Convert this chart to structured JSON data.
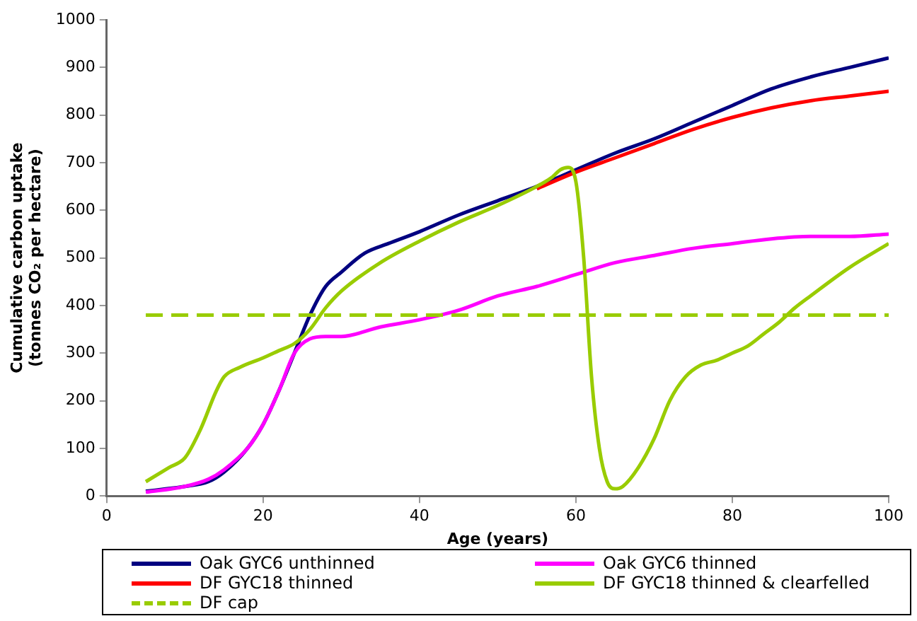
{
  "chart_data": {
    "type": "line",
    "xlabel": "Age (years)",
    "ylabel": "Cumulative carbon uptake (tonnes CO₂ per hectare)",
    "xlim": [
      0,
      100
    ],
    "xticks": [
      0,
      20,
      40,
      60,
      80,
      100
    ],
    "ylim": [
      0,
      1000
    ],
    "yticks": [
      0,
      100,
      200,
      300,
      400,
      500,
      600,
      700,
      800,
      900,
      1000
    ],
    "grid": false,
    "legend": "bottom",
    "marker": "none",
    "line_style": "solid",
    "series": [
      {
        "name": "Oak GYC6 unthinned",
        "color": "#000080",
        "x": [
          5,
          10,
          13,
          15,
          18,
          20,
          22,
          24,
          26,
          28,
          30,
          33,
          36,
          40,
          45,
          50,
          55,
          60,
          65,
          70,
          75,
          80,
          85,
          90,
          95,
          100
        ],
        "values": [
          10,
          20,
          30,
          50,
          100,
          150,
          220,
          300,
          380,
          440,
          470,
          510,
          530,
          555,
          590,
          620,
          650,
          685,
          720,
          750,
          785,
          820,
          855,
          880,
          900,
          920
        ]
      },
      {
        "name": "Oak GYC6 thinned",
        "color": "#ff00ff",
        "x": [
          5,
          10,
          13,
          15,
          18,
          20,
          22,
          24,
          26,
          28,
          30,
          35,
          40,
          45,
          50,
          55,
          60,
          65,
          70,
          75,
          80,
          85,
          90,
          95,
          100
        ],
        "values": [
          8,
          20,
          35,
          55,
          100,
          150,
          220,
          300,
          330,
          335,
          335,
          355,
          370,
          390,
          420,
          440,
          465,
          490,
          505,
          520,
          530,
          540,
          545,
          545,
          550
        ]
      },
      {
        "name": "DF GYC18 thinned",
        "color": "#ff0000",
        "x": [
          55,
          60,
          65,
          70,
          75,
          80,
          85,
          90,
          95,
          100
        ],
        "values": [
          645,
          680,
          710,
          740,
          770,
          795,
          815,
          830,
          840,
          850
        ]
      },
      {
        "name": "DF GYC18 thinned & clearfelled",
        "color": "#99cc00",
        "x": [
          5,
          8,
          10,
          12,
          14,
          15,
          17,
          20,
          22,
          24,
          26,
          28,
          30,
          35,
          40,
          45,
          50,
          55,
          57,
          58,
          59,
          60,
          61,
          62,
          63,
          64,
          65,
          66,
          68,
          70,
          72,
          74,
          76,
          78,
          80,
          82,
          84,
          86,
          88,
          90,
          95,
          100
        ],
        "values": [
          30,
          60,
          80,
          140,
          220,
          250,
          270,
          290,
          305,
          320,
          350,
          395,
          430,
          490,
          535,
          575,
          610,
          650,
          670,
          685,
          690,
          660,
          500,
          250,
          100,
          30,
          15,
          20,
          60,
          120,
          200,
          250,
          275,
          285,
          300,
          315,
          340,
          365,
          395,
          420,
          480,
          530
        ]
      },
      {
        "name": "DF cap",
        "color": "#99cc00",
        "line_style": "dashed",
        "x": [
          5,
          100
        ],
        "values": [
          380,
          380
        ]
      }
    ]
  }
}
